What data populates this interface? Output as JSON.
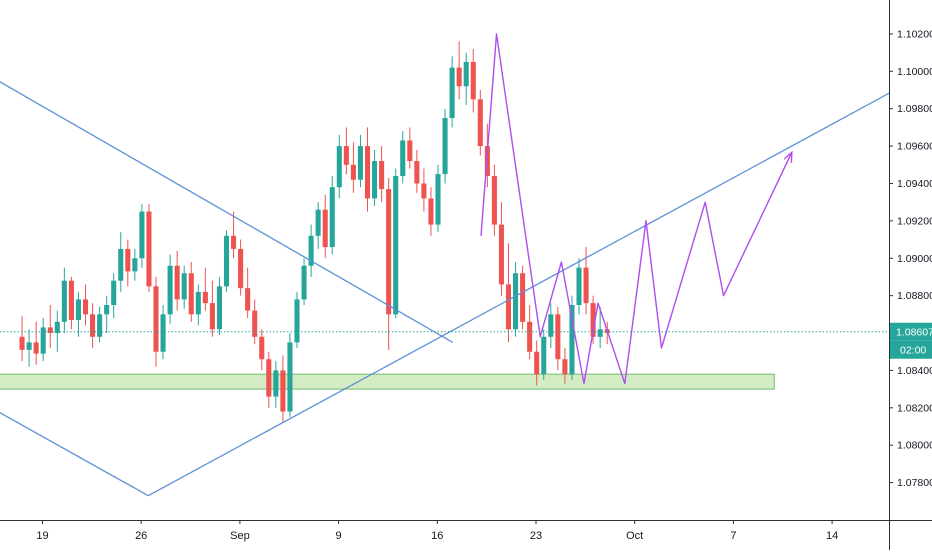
{
  "chart_data": {
    "type": "candlestick",
    "instrument_label": "",
    "y_axis": {
      "ticks": [
        "1.07800",
        "1.08000",
        "1.08200",
        "1.08400",
        "1.08600",
        "1.08800",
        "1.09000",
        "1.09200",
        "1.09400",
        "1.09600",
        "1.09800",
        "1.10000",
        "1.10200"
      ],
      "ylim": [
        1.076,
        1.1036
      ],
      "current_price": "1.08607",
      "countdown": "02:00"
    },
    "x_axis": {
      "ticks": [
        "19",
        "26",
        "Sep",
        "9",
        "16",
        "23",
        "Oct",
        "7",
        "14"
      ],
      "tick_positions": [
        0.5,
        7.5,
        14.5,
        21.5,
        28.5,
        35.5,
        42.5,
        49.5,
        56.5
      ]
    },
    "grid": false,
    "colors": {
      "up": "#26a69a",
      "down": "#ef5350",
      "trendline": "#5b8fd8",
      "forecast": "#b04df0",
      "support_zone_fill": "#d4ecc4",
      "support_zone_border": "#6cbf6c",
      "price_line": "#26a69a",
      "price_label_bg": "#26a69a"
    },
    "support_zone": {
      "x_from": -3,
      "x_to": 52.4,
      "y_low": 1.083,
      "y_high": 1.0838
    },
    "trendlines": [
      {
        "name": "descending",
        "points": [
          [
            -2.9,
            1.0996
          ],
          [
            29.6,
            1.0855
          ]
        ]
      },
      {
        "name": "lower-boundary",
        "points": [
          [
            -2.9,
            1.0819
          ],
          [
            8.0,
            1.0773
          ]
        ]
      },
      {
        "name": "ascending",
        "points": [
          [
            8.0,
            1.0773
          ],
          [
            61.2,
            1.0991
          ]
        ]
      }
    ],
    "forecast_path": [
      [
        31.6,
        1.0912
      ],
      [
        32.7,
        1.102
      ],
      [
        35.8,
        1.0858
      ],
      [
        37.3,
        1.0898
      ],
      [
        38.9,
        1.0833
      ],
      [
        39.9,
        1.0876
      ],
      [
        41.8,
        1.0833
      ],
      [
        43.3,
        1.092
      ],
      [
        44.4,
        1.0852
      ],
      [
        47.5,
        1.093
      ],
      [
        48.8,
        1.088
      ],
      [
        53.6,
        1.0956
      ]
    ],
    "candles_per_day": 2,
    "candles": [
      [
        1.0858,
        1.0869,
        1.0845,
        1.0851
      ],
      [
        1.0851,
        1.0862,
        1.0842,
        1.0855
      ],
      [
        1.0855,
        1.0866,
        1.0843,
        1.0849
      ],
      [
        1.0849,
        1.0868,
        1.0845,
        1.0863
      ],
      [
        1.0863,
        1.0875,
        1.0852,
        1.086
      ],
      [
        1.086,
        1.0872,
        1.085,
        1.0866
      ],
      [
        1.0866,
        1.0895,
        1.086,
        1.0888
      ],
      [
        1.0888,
        1.089,
        1.0862,
        1.0867
      ],
      [
        1.0867,
        1.0882,
        1.0858,
        1.0878
      ],
      [
        1.0878,
        1.0886,
        1.0864,
        1.087
      ],
      [
        1.087,
        1.0876,
        1.0852,
        1.0858
      ],
      [
        1.0858,
        1.0874,
        1.0855,
        1.087
      ],
      [
        1.087,
        1.088,
        1.086,
        1.0875
      ],
      [
        1.0875,
        1.0892,
        1.0868,
        1.0888
      ],
      [
        1.0888,
        1.0914,
        1.0882,
        1.0905
      ],
      [
        1.0905,
        1.091,
        1.0885,
        1.0893
      ],
      [
        1.0893,
        1.0905,
        1.0888,
        1.09
      ],
      [
        1.09,
        1.0929,
        1.0895,
        1.0925
      ],
      [
        1.0925,
        1.0929,
        1.0882,
        1.0885
      ],
      [
        1.0885,
        1.089,
        1.0842,
        1.085
      ],
      [
        1.085,
        1.0875,
        1.0846,
        1.087
      ],
      [
        1.087,
        1.0902,
        1.0865,
        1.0896
      ],
      [
        1.0896,
        1.0904,
        1.0872,
        1.0878
      ],
      [
        1.0878,
        1.0896,
        1.0873,
        1.0892
      ],
      [
        1.0892,
        1.0898,
        1.0866,
        1.087
      ],
      [
        1.087,
        1.0886,
        1.0864,
        1.0882
      ],
      [
        1.0882,
        1.0895,
        1.0872,
        1.0876
      ],
      [
        1.0876,
        1.0888,
        1.0858,
        1.0862
      ],
      [
        1.0862,
        1.089,
        1.0859,
        1.0885
      ],
      [
        1.0885,
        1.0915,
        1.0882,
        1.0912
      ],
      [
        1.0912,
        1.0925,
        1.09,
        1.0905
      ],
      [
        1.0905,
        1.091,
        1.088,
        1.0884
      ],
      [
        1.0884,
        1.0895,
        1.0868,
        1.0872
      ],
      [
        1.0872,
        1.0878,
        1.0854,
        1.0858
      ],
      [
        1.0858,
        1.0862,
        1.084,
        1.0846
      ],
      [
        1.0846,
        1.085,
        1.082,
        1.0826
      ],
      [
        1.0826,
        1.0845,
        1.082,
        1.084
      ],
      [
        1.084,
        1.0848,
        1.0812,
        1.0818
      ],
      [
        1.0818,
        1.086,
        1.0815,
        1.0855
      ],
      [
        1.0855,
        1.0882,
        1.0852,
        1.0878
      ],
      [
        1.0878,
        1.09,
        1.0875,
        1.0896
      ],
      [
        1.0896,
        1.0918,
        1.089,
        1.0912
      ],
      [
        1.0912,
        1.093,
        1.0905,
        1.0926
      ],
      [
        1.0926,
        1.0934,
        1.09,
        1.0906
      ],
      [
        1.0906,
        1.0944,
        1.0902,
        1.0938
      ],
      [
        1.0938,
        1.0966,
        1.0932,
        1.096
      ],
      [
        1.096,
        1.097,
        1.0945,
        1.095
      ],
      [
        1.095,
        1.0962,
        1.0935,
        1.0942
      ],
      [
        1.0942,
        1.0966,
        1.0938,
        1.096
      ],
      [
        1.096,
        1.097,
        1.0925,
        1.0932
      ],
      [
        1.0932,
        1.0958,
        1.0928,
        1.0952
      ],
      [
        1.0952,
        1.096,
        1.093,
        1.0937
      ],
      [
        1.0937,
        1.0943,
        1.0851,
        1.087
      ],
      [
        1.087,
        1.0948,
        1.0868,
        1.0944
      ],
      [
        1.0944,
        1.0968,
        1.094,
        1.0963
      ],
      [
        1.0963,
        1.097,
        1.0948,
        1.0952
      ],
      [
        1.0952,
        1.0958,
        1.0935,
        1.094
      ],
      [
        1.094,
        1.0948,
        1.0925,
        1.0932
      ],
      [
        1.0932,
        1.0938,
        1.0912,
        1.0918
      ],
      [
        1.0918,
        1.095,
        1.0914,
        1.0945
      ],
      [
        1.0945,
        1.098,
        1.094,
        1.0975
      ],
      [
        1.0975,
        1.1008,
        1.097,
        1.1002
      ],
      [
        1.1002,
        1.1016,
        1.0985,
        1.0992
      ],
      [
        1.0992,
        1.101,
        1.0982,
        1.1005
      ],
      [
        1.1005,
        1.1012,
        1.0978,
        1.0985
      ],
      [
        1.0985,
        1.099,
        1.0955,
        1.096
      ],
      [
        1.096,
        1.0972,
        1.0938,
        1.0944
      ],
      [
        1.0944,
        1.095,
        1.0912,
        1.0918
      ],
      [
        1.0918,
        1.093,
        1.088,
        1.0886
      ],
      [
        1.0886,
        1.0908,
        1.0855,
        1.0862
      ],
      [
        1.0862,
        1.0898,
        1.0858,
        1.0892
      ],
      [
        1.0892,
        1.0896,
        1.0862,
        1.0866
      ],
      [
        1.0866,
        1.0875,
        1.0846,
        1.085
      ],
      [
        1.085,
        1.0856,
        1.0832,
        1.0838
      ],
      [
        1.0838,
        1.0862,
        1.0835,
        1.0858
      ],
      [
        1.0858,
        1.0876,
        1.0852,
        1.087
      ],
      [
        1.087,
        1.0874,
        1.084,
        1.0846
      ],
      [
        1.0846,
        1.0852,
        1.0833,
        1.0838
      ],
      [
        1.0838,
        1.088,
        1.0835,
        1.0875
      ],
      [
        1.0875,
        1.09,
        1.087,
        1.0895
      ],
      [
        1.0895,
        1.0906,
        1.087,
        1.0876
      ],
      [
        1.0876,
        1.088,
        1.0854,
        1.0858
      ],
      [
        1.0858,
        1.0874,
        1.0852,
        1.0862
      ],
      [
        1.0862,
        1.0866,
        1.0854,
        1.086
      ]
    ]
  }
}
